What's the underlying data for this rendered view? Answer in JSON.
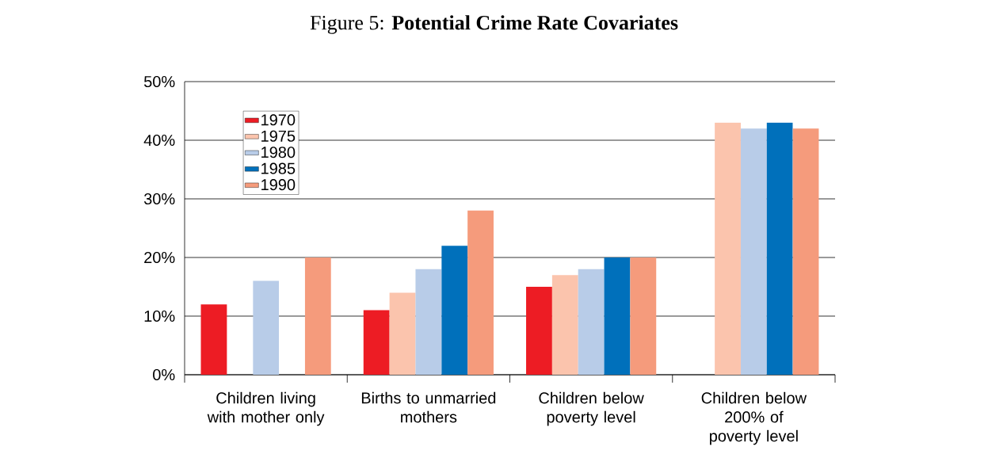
{
  "chart_data": {
    "type": "bar",
    "title": "Figure 5: **Potential Crime Rate Covariates**",
    "categories": [
      "Children living with mother only",
      "Births to unmarried mothers",
      "Children below poverty level",
      "Children below 200% of poverty level"
    ],
    "series": [
      {
        "name": "1970",
        "color": "#ed1c24",
        "values": [
          12,
          11,
          15,
          null
        ]
      },
      {
        "name": "1975",
        "color": "#fbc4ad",
        "values": [
          null,
          14,
          17,
          43
        ]
      },
      {
        "name": "1980",
        "color": "#b8cce8",
        "values": [
          16,
          18,
          18,
          42
        ]
      },
      {
        "name": "1985",
        "color": "#0070bb",
        "values": [
          null,
          22,
          20,
          43
        ]
      },
      {
        "name": "1990",
        "color": "#f59b7c",
        "values": [
          20,
          28,
          20,
          42
        ]
      }
    ],
    "ylim": [
      0,
      50
    ],
    "yticks": [
      {
        "value": 0,
        "label": "0%"
      },
      {
        "value": 10,
        "label": "10%"
      },
      {
        "value": 20,
        "label": "20%"
      },
      {
        "value": 30,
        "label": "30%"
      },
      {
        "value": 40,
        "label": "40%"
      },
      {
        "value": 50,
        "label": "50%"
      }
    ],
    "grid": "y",
    "legend": "top left"
  }
}
